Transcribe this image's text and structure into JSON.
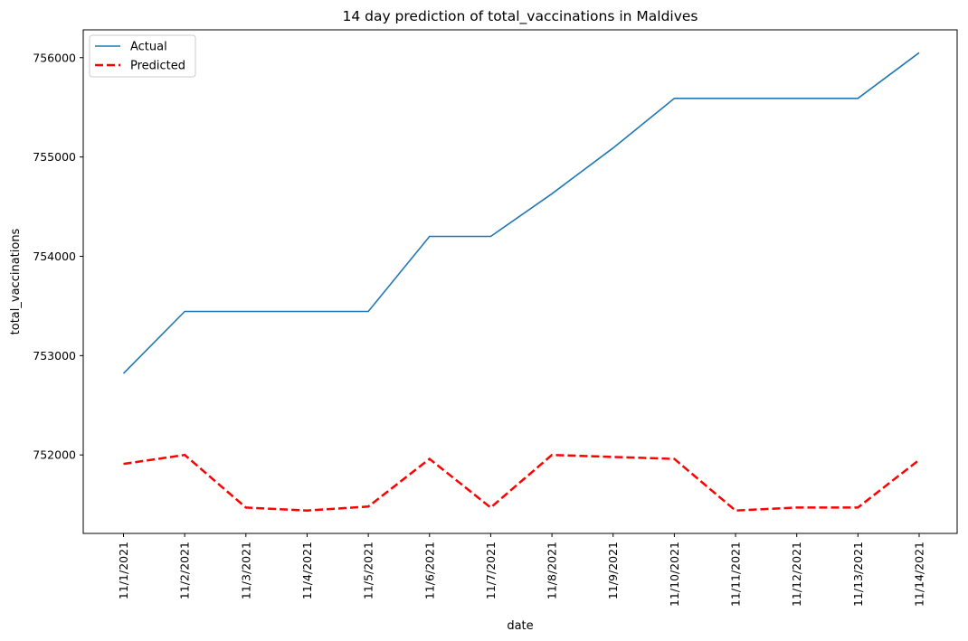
{
  "chart_data": {
    "type": "line",
    "title": "14 day prediction of total_vaccinations in Maldives",
    "xlabel": "date",
    "ylabel": "total_vaccinations",
    "categories": [
      "11/1/2021",
      "11/2/2021",
      "11/3/2021",
      "11/4/2021",
      "11/5/2021",
      "11/6/2021",
      "11/7/2021",
      "11/8/2021",
      "11/9/2021",
      "11/10/2021",
      "11/11/2021",
      "11/12/2021",
      "11/13/2021",
      "11/14/2021"
    ],
    "ylim": [
      751210,
      756280
    ],
    "yticks": [
      752000,
      753000,
      754000,
      755000,
      756000
    ],
    "grid": false,
    "legend_position": "top-left",
    "series": [
      {
        "name": "Actual",
        "color": "#1f77b4",
        "dash": "solid",
        "values": [
          752820,
          753445,
          753445,
          753445,
          753445,
          754200,
          754200,
          754630,
          755090,
          755590,
          755590,
          755590,
          755590,
          756050
        ]
      },
      {
        "name": "Predicted",
        "color": "#ff0000",
        "dash": "dashed",
        "values": [
          751910,
          752000,
          751470,
          751440,
          751480,
          751960,
          751470,
          752000,
          751980,
          751960,
          751440,
          751470,
          751470,
          751950
        ]
      }
    ]
  }
}
